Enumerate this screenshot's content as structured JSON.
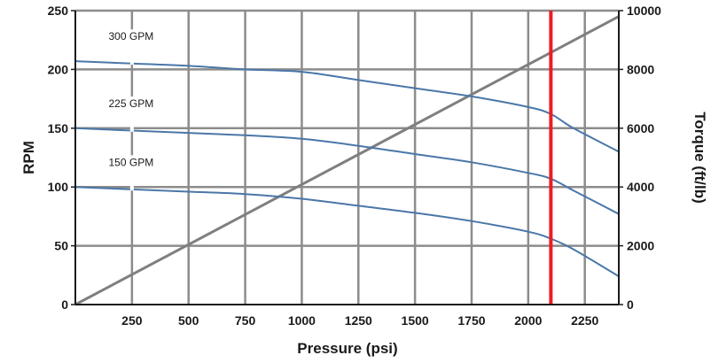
{
  "chart_data": {
    "type": "line",
    "xlabel": "Pressure (psi)",
    "ylabel": "RPM",
    "y2label": "Torque (ft/lb)",
    "xlim": [
      0,
      2400
    ],
    "ylim": [
      0,
      250
    ],
    "y2lim": [
      0,
      10000
    ],
    "x_ticks": [
      250,
      500,
      750,
      1000,
      1250,
      1500,
      1750,
      2000,
      2250
    ],
    "y_ticks": [
      0,
      50,
      100,
      150,
      200,
      250
    ],
    "y2_ticks": [
      0,
      2000,
      4000,
      6000,
      8000,
      10000
    ],
    "grid": true,
    "series": [
      {
        "name": "300 GPM",
        "axis": "left",
        "color": "#4a77a8",
        "points": [
          [
            0,
            207
          ],
          [
            250,
            205
          ],
          [
            500,
            203
          ],
          [
            750,
            200
          ],
          [
            1000,
            198
          ],
          [
            1250,
            191
          ],
          [
            1500,
            184
          ],
          [
            1750,
            177
          ],
          [
            2000,
            168
          ],
          [
            2100,
            162
          ],
          [
            2200,
            150
          ],
          [
            2400,
            130
          ]
        ]
      },
      {
        "name": "225 GPM",
        "axis": "left",
        "color": "#4a77a8",
        "points": [
          [
            0,
            150
          ],
          [
            250,
            148
          ],
          [
            500,
            146
          ],
          [
            750,
            144
          ],
          [
            1000,
            141
          ],
          [
            1250,
            135
          ],
          [
            1500,
            128
          ],
          [
            1750,
            121
          ],
          [
            2000,
            112
          ],
          [
            2100,
            107
          ],
          [
            2200,
            97
          ],
          [
            2400,
            77
          ]
        ]
      },
      {
        "name": "150 GPM",
        "axis": "left",
        "color": "#4a77a8",
        "points": [
          [
            0,
            100
          ],
          [
            250,
            98
          ],
          [
            500,
            96
          ],
          [
            750,
            94
          ],
          [
            1000,
            90
          ],
          [
            1250,
            84
          ],
          [
            1500,
            78
          ],
          [
            1750,
            71
          ],
          [
            2000,
            62
          ],
          [
            2100,
            56
          ],
          [
            2200,
            47
          ],
          [
            2400,
            24
          ]
        ]
      },
      {
        "name": "Torque",
        "axis": "right",
        "color": "#7f7f7f",
        "points": [
          [
            0,
            0
          ],
          [
            2400,
            9800
          ]
        ]
      }
    ],
    "markers": [
      {
        "type": "vertical-line",
        "x": 2100,
        "color": "#ee1c24"
      }
    ]
  }
}
